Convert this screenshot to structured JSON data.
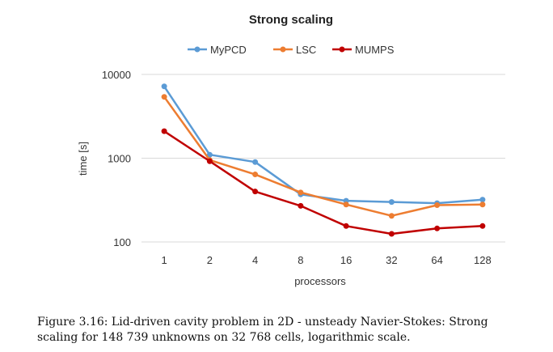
{
  "chart_data": {
    "type": "line",
    "title": "Strong scaling",
    "xlabel": "processors",
    "ylabel": "time [s]",
    "x": [
      "1",
      "2",
      "4",
      "8",
      "16",
      "32",
      "64",
      "128"
    ],
    "yscale": "log",
    "ylim": [
      100,
      10000
    ],
    "yticks": [
      "100",
      "1000",
      "10000"
    ],
    "grid": "horizontal",
    "legend": "top",
    "series": [
      {
        "name": "MyPCD",
        "color": "#5b9bd5",
        "values": [
          7200,
          1100,
          900,
          370,
          310,
          300,
          290,
          320
        ]
      },
      {
        "name": "LSC",
        "color": "#ed7d31",
        "values": [
          5400,
          950,
          640,
          390,
          280,
          205,
          275,
          280
        ]
      },
      {
        "name": "MUMPS",
        "color": "#c00000",
        "values": [
          2100,
          920,
          400,
          270,
          155,
          125,
          145,
          155
        ]
      }
    ]
  },
  "caption": "Figure 3.16: Lid-driven cavity problem in 2D - unsteady Navier-Stokes: Strong scaling for 148 739 unknowns on 32 768 cells, logarithmic scale."
}
